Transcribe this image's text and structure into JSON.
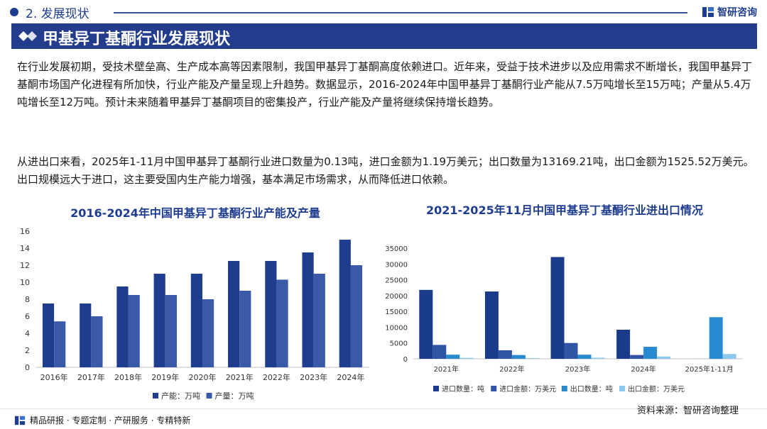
{
  "header": {
    "section_label": "2. 发展现状",
    "brand_name": "智研咨询"
  },
  "banner": {
    "title": "甲基异丁基酮行业发展现状"
  },
  "body": {
    "paragraph1": "在行业发展初期，受技术壁垒高、生产成本高等因素限制，我国甲基异丁基酮高度依赖进口。近年来，受益于技术进步以及应用需求不断增长，我国甲基异丁基酮市场国产化进程有所加快，行业产能及产量呈现上升趋势。数据显示，2016-2024年中国甲基异丁基酮行业产能从7.5万吨增长至15万吨；产量从5.4万吨增长至12万吨。预计未来随着甲基异丁基酮项目的密集投产，行业产能及产量将继续保持增长趋势。",
    "paragraph2": "从进出口来看，2025年1-11月中国甲基异丁基酮行业进口数量为0.13吨，进口金额为1.19万美元；出口数量为13169.21吨，出口金额为1525.52万美元。出口规模远大于进口，这主要受国内生产能力增强，基本满足市场需求，从而降低进口依赖。"
  },
  "footer": {
    "tagline": "精品研报 · 专题定制 · 产研服务 · 专精特新",
    "source": "资料来源：智研咨询整理"
  },
  "colors": {
    "brand": "#1f3d8f",
    "banner": "#233d8c",
    "capacity": "#1f3d8f",
    "output": "#3a5aa8",
    "import_qty": "#1a3a8c",
    "import_amt": "#2f55a4",
    "export_qty": "#2a8ad0",
    "export_amt": "#8cc8ec"
  },
  "chart_data": [
    {
      "type": "bar",
      "title": "2016-2024年中国甲基异丁基酮行业产能及产量",
      "categories": [
        "2016年",
        "2017年",
        "2018年",
        "2019年",
        "2020年",
        "2021年",
        "2022年",
        "2023年",
        "2024年"
      ],
      "series": [
        {
          "name": "产能：万吨",
          "values": [
            7.5,
            7.5,
            9.5,
            11,
            11,
            12.5,
            12.5,
            13.5,
            15
          ]
        },
        {
          "name": "产量：万吨",
          "values": [
            5.4,
            6,
            8.5,
            8.5,
            8,
            9,
            10.3,
            11,
            12
          ]
        }
      ],
      "ylim": [
        0,
        16
      ],
      "yticks": [
        0,
        2,
        4,
        6,
        8,
        10,
        12,
        14,
        16
      ],
      "grid": false,
      "legend": "bottom"
    },
    {
      "type": "bar",
      "title": "2021-2025年11月中国甲基异丁基酮行业进出口情况",
      "categories": [
        "2021年",
        "2022年",
        "2023年",
        "2024年",
        "2025年1-11月"
      ],
      "series": [
        {
          "name": "进口数量：吨",
          "values": [
            21800,
            21300,
            32200,
            9200,
            0.13
          ]
        },
        {
          "name": "进口金额：万美元",
          "values": [
            4400,
            2700,
            5000,
            1200,
            1.19
          ]
        },
        {
          "name": "出口数量：吨",
          "values": [
            1300,
            1200,
            1300,
            3800,
            13169.21
          ]
        },
        {
          "name": "出口金额：万美元",
          "values": [
            300,
            200,
            350,
            700,
            1525.52
          ]
        }
      ],
      "ylim": [
        0,
        35000
      ],
      "yticks": [
        0,
        5000,
        10000,
        15000,
        20000,
        25000,
        30000,
        35000
      ],
      "grid": false,
      "legend": "bottom"
    }
  ]
}
